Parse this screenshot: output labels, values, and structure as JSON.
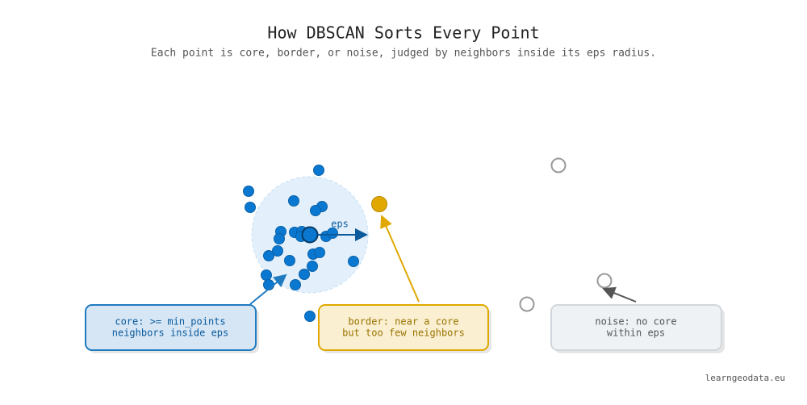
{
  "header": {
    "title": "How DBSCAN Sorts Every Point",
    "subtitle": "Each point is core, border, or noise, judged by neighbors inside its eps radius."
  },
  "radius_label": "eps",
  "callouts": [
    {
      "kind": "core",
      "lines": [
        "core: >= min_points",
        "neighbors inside eps"
      ]
    },
    {
      "kind": "border",
      "lines": [
        "border: near a core",
        "but too few neighbors"
      ]
    },
    {
      "kind": "noise",
      "lines": [
        "noise: no core",
        "within eps"
      ]
    }
  ],
  "footer": "learngeodata.eu"
}
